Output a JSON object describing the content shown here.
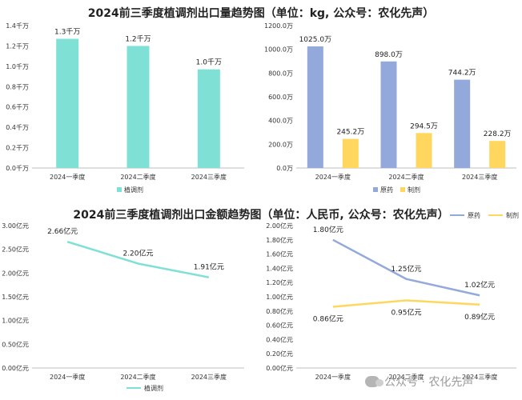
{
  "titles": {
    "top": "2024前三季度植调剂出口量趋势图（单位：kg, 公众号：农化先声）",
    "bottom": "2024前三季度植调剂出口金额趋势图（单位：人民币, 公众号：农化先声）"
  },
  "watermark": "公众号 · 农化先声",
  "colors": {
    "teal": "#7fe0d6",
    "blue": "#93a9dc",
    "yellow": "#ffd75e",
    "axis": "#bfbfbf"
  },
  "chart_data": [
    {
      "id": "volume-total",
      "type": "bar",
      "categories": [
        "2024一季度",
        "2024二季度",
        "2024三季度"
      ],
      "series": [
        {
          "name": "植调剂",
          "values": [
            1.27,
            1.2,
            0.97
          ],
          "labels": [
            "1.3千万",
            "1.2千万",
            "1.0千万"
          ]
        }
      ],
      "ylim": [
        0,
        1.4
      ],
      "yticks": [
        0,
        0.2,
        0.4,
        0.6,
        0.8,
        1.0,
        1.2,
        1.4
      ],
      "ytick_labels": [
        "0.0千万",
        "0.2千万",
        "0.4千万",
        "0.6千万",
        "0.8千万",
        "1.0千万",
        "1.2千万",
        "1.4千万"
      ],
      "legend_position": "bottom-left"
    },
    {
      "id": "volume-split",
      "type": "bar",
      "categories": [
        "2024一季度",
        "2024二季度",
        "2024三季度"
      ],
      "series": [
        {
          "name": "原药",
          "values": [
            1025.0,
            898.0,
            744.2
          ],
          "labels": [
            "1025.0万",
            "898.0万",
            "744.2万"
          ]
        },
        {
          "name": "制剂",
          "values": [
            245.2,
            294.5,
            228.2
          ],
          "labels": [
            "245.2万",
            "294.5万",
            "228.2万"
          ]
        }
      ],
      "ylim": [
        0,
        1200
      ],
      "yticks": [
        0,
        200,
        400,
        600,
        800,
        1000,
        1200
      ],
      "ytick_labels": [
        "0.0万",
        "200.0万",
        "400.0万",
        "600.0万",
        "800.0万",
        "1000.0万",
        "1200.0万"
      ],
      "legend_position": "bottom-left"
    },
    {
      "id": "value-total",
      "type": "line",
      "categories": [
        "2024一季度",
        "2024二季度",
        "2024三季度"
      ],
      "series": [
        {
          "name": "植调剂",
          "values": [
            2.66,
            2.2,
            1.91
          ],
          "labels": [
            "2.66亿元",
            "2.20亿元",
            "1.91亿元"
          ]
        }
      ],
      "ylim": [
        0,
        3.0
      ],
      "yticks": [
        0,
        0.5,
        1.0,
        1.5,
        2.0,
        2.5,
        3.0
      ],
      "ytick_labels": [
        "0.00亿元",
        "0.50亿元",
        "1.00亿元",
        "1.50亿元",
        "2.00亿元",
        "2.50亿元",
        "3.00亿元"
      ],
      "legend_position": "bottom"
    },
    {
      "id": "value-split",
      "type": "line",
      "categories": [
        "2024一季度",
        "2024二季度",
        "2024三季度"
      ],
      "series": [
        {
          "name": "原药",
          "values": [
            1.8,
            1.25,
            1.02
          ],
          "labels": [
            "1.80亿元",
            "1.25亿元",
            "1.02亿元"
          ]
        },
        {
          "name": "制剂",
          "values": [
            0.86,
            0.95,
            0.89
          ],
          "labels": [
            "0.86亿元",
            "0.95亿元",
            "0.89亿元"
          ]
        }
      ],
      "ylim": [
        0,
        2.0
      ],
      "yticks": [
        0,
        0.2,
        0.4,
        0.6,
        0.8,
        1.0,
        1.2,
        1.4,
        1.6,
        1.8,
        2.0
      ],
      "ytick_labels": [
        "0.00亿元",
        "0.20亿元",
        "0.40亿元",
        "0.60亿元",
        "0.80亿元",
        "1.00亿元",
        "1.20亿元",
        "1.40亿元",
        "1.60亿元",
        "1.80亿元",
        "2.00亿元"
      ],
      "legend_position": "top-right"
    }
  ]
}
